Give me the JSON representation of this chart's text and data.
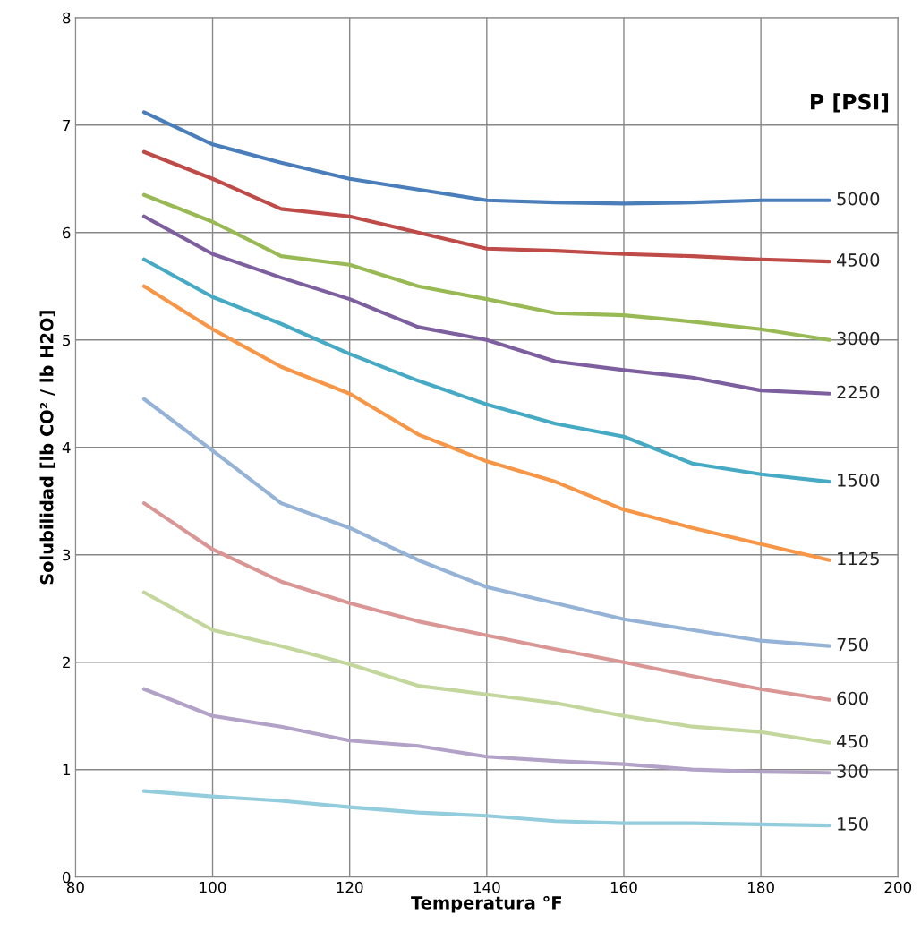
{
  "chart_data": {
    "type": "line",
    "xlabel": "Temperatura °F",
    "ylabel": "Solubilidad [lb CO² / lb H2O]",
    "legend_title": "P [PSI]",
    "x": [
      90,
      100,
      110,
      120,
      130,
      140,
      150,
      160,
      170,
      180,
      190
    ],
    "xlim": [
      80,
      200
    ],
    "xticks": [
      80,
      100,
      120,
      140,
      160,
      180,
      200
    ],
    "ylim": [
      0,
      8
    ],
    "yticks": [
      0,
      1,
      2,
      3,
      4,
      5,
      6,
      7,
      8
    ],
    "grid": true,
    "marker": "none",
    "line_style": "solid",
    "series": [
      {
        "name": "5000",
        "color": "#4a7ebb",
        "values": [
          7.12,
          6.82,
          6.65,
          6.5,
          6.4,
          6.3,
          6.28,
          6.27,
          6.28,
          6.3,
          6.3
        ]
      },
      {
        "name": "4500",
        "color": "#be4b48",
        "values": [
          6.75,
          6.5,
          6.22,
          6.15,
          6.0,
          5.85,
          5.83,
          5.8,
          5.78,
          5.75,
          5.73
        ]
      },
      {
        "name": "3000",
        "color": "#98b954",
        "values": [
          6.35,
          6.1,
          5.78,
          5.7,
          5.5,
          5.38,
          5.25,
          5.23,
          5.17,
          5.1,
          5.0
        ]
      },
      {
        "name": "2250",
        "color": "#7d5fa0",
        "values": [
          6.15,
          5.8,
          5.58,
          5.38,
          5.12,
          5.0,
          4.8,
          4.72,
          4.65,
          4.53,
          4.5
        ]
      },
      {
        "name": "1500",
        "color": "#46aac5",
        "values": [
          5.75,
          5.4,
          5.15,
          4.87,
          4.62,
          4.4,
          4.22,
          4.1,
          3.85,
          3.75,
          3.68
        ]
      },
      {
        "name": "1125",
        "color": "#f79646",
        "values": [
          5.5,
          5.1,
          4.75,
          4.5,
          4.12,
          3.87,
          3.68,
          3.42,
          3.25,
          3.1,
          2.95
        ]
      },
      {
        "name": "750",
        "color": "#95b3d7",
        "values": [
          4.45,
          3.97,
          3.48,
          3.25,
          2.95,
          2.7,
          2.55,
          2.4,
          2.3,
          2.2,
          2.15
        ]
      },
      {
        "name": "600",
        "color": "#d99694",
        "values": [
          3.48,
          3.05,
          2.75,
          2.55,
          2.38,
          2.25,
          2.12,
          2.0,
          1.87,
          1.75,
          1.65
        ]
      },
      {
        "name": "450",
        "color": "#c3d69b",
        "values": [
          2.65,
          2.3,
          2.15,
          1.98,
          1.78,
          1.7,
          1.62,
          1.5,
          1.4,
          1.35,
          1.25
        ]
      },
      {
        "name": "300",
        "color": "#b3a2c7",
        "values": [
          1.75,
          1.5,
          1.4,
          1.27,
          1.22,
          1.12,
          1.08,
          1.05,
          1.0,
          0.98,
          0.97
        ]
      },
      {
        "name": "150",
        "color": "#93cddd",
        "values": [
          0.8,
          0.75,
          0.71,
          0.65,
          0.6,
          0.57,
          0.52,
          0.5,
          0.5,
          0.49,
          0.48
        ]
      }
    ]
  }
}
